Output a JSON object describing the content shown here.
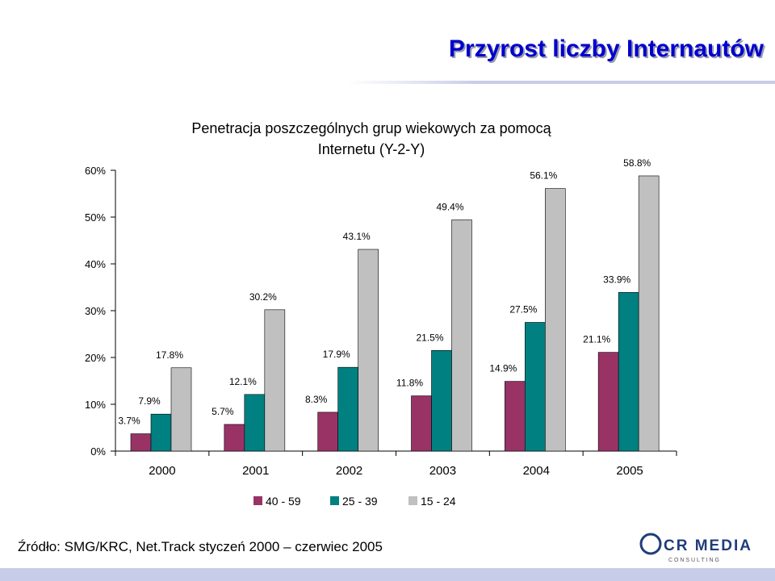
{
  "slide": {
    "title": "Przyrost liczby Internautów",
    "source": "Źródło: SMG/KRC, Net.Track styczeń 2000 – czerwiec 2005",
    "logo_text": "CR MEDIA",
    "logo_subtext": "C O N S U L T I N G"
  },
  "chart_data": {
    "type": "bar",
    "title": "Penetracja poszczególnych grup wiekowych za pomocą Internetu (Y-2-Y)",
    "title_lines": [
      "Penetracja poszczególnych grup wiekowych za pomocą",
      "Internetu (Y-2-Y)"
    ],
    "categories": [
      "2000",
      "2001",
      "2002",
      "2003",
      "2004",
      "2005"
    ],
    "series": [
      {
        "name": "40 - 59",
        "color": "#993366",
        "values": [
          3.7,
          5.7,
          8.3,
          11.8,
          14.9,
          21.1
        ],
        "labels": [
          "3.7%",
          "5.7%",
          "8.3%",
          "11.8%",
          "14.9%",
          "21.1%"
        ]
      },
      {
        "name": "25 - 39",
        "color": "#008080",
        "values": [
          7.9,
          12.1,
          17.9,
          21.5,
          27.5,
          33.9
        ],
        "labels": [
          "7.9%",
          "12.1%",
          "17.9%",
          "21.5%",
          "27.5%",
          "33.9%"
        ]
      },
      {
        "name": "15 - 24",
        "color": "#c0c0c0",
        "values": [
          17.8,
          30.2,
          43.1,
          49.4,
          56.1,
          58.8
        ],
        "labels": [
          "17.8%",
          "30.2%",
          "43.1%",
          "49.4%",
          "56.1%",
          "58.8%"
        ]
      }
    ],
    "ylim": [
      0,
      60
    ],
    "yticks": [
      0,
      10,
      20,
      30,
      40,
      50,
      60
    ],
    "ytick_labels": [
      "0%",
      "10%",
      "20%",
      "30%",
      "40%",
      "50%",
      "60%"
    ],
    "grid": false,
    "legend": "bottom"
  }
}
